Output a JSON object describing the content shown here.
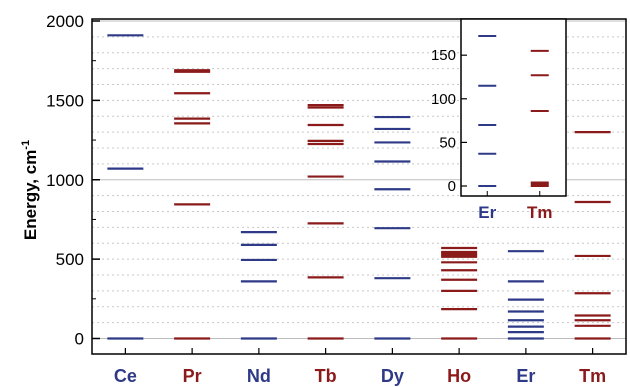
{
  "chart_data": [
    {
      "type": "line",
      "title": "",
      "ylabel": "Energy, cm",
      "ylabel_sup": "-1",
      "ylim": [
        -100,
        2050
      ],
      "yticks": [
        "0",
        "500",
        "1000",
        "1500",
        "2000"
      ],
      "ytick_values": [
        0,
        500,
        1000,
        1500,
        2000
      ],
      "grid": "dotted horizontal lines every 100 cm-1, solid at 0/1000/2000",
      "colors": {
        "blue": "#2e3a87",
        "red": "#8b1a1a"
      },
      "categories": [
        {
          "label": "Ce",
          "color": "blue",
          "levels": [
            0,
            1070,
            1910
          ]
        },
        {
          "label": "Pr",
          "color": "red",
          "levels": [
            0,
            845,
            1355,
            1385,
            1545,
            1680,
            1690
          ]
        },
        {
          "label": "Nd",
          "color": "blue",
          "levels": [
            0,
            360,
            495,
            590,
            670
          ]
        },
        {
          "label": "Tb",
          "color": "red",
          "levels": [
            0,
            385,
            725,
            1020,
            1225,
            1245,
            1345,
            1455,
            1470
          ]
        },
        {
          "label": "Dy",
          "color": "blue",
          "levels": [
            0,
            380,
            695,
            940,
            1115,
            1235,
            1320,
            1395
          ]
        },
        {
          "label": "Ho",
          "color": "red",
          "levels": [
            0,
            185,
            300,
            370,
            430,
            480,
            515,
            525,
            535,
            545,
            570
          ]
        },
        {
          "label": "Er",
          "color": "blue",
          "levels": [
            0,
            40,
            75,
            115,
            170,
            245,
            360,
            550
          ]
        },
        {
          "label": "Tm",
          "color": "red",
          "levels": [
            0,
            80,
            115,
            145,
            285,
            520,
            860,
            1300
          ]
        }
      ]
    },
    {
      "type": "line",
      "title": "inset",
      "ylim": [
        -8,
        182
      ],
      "yticks": [
        "0",
        "50",
        "100",
        "150"
      ],
      "ytick_values": [
        0,
        50,
        100,
        150
      ],
      "categories": [
        {
          "label": "Er",
          "color": "blue",
          "levels": [
            0,
            37,
            70,
            115,
            172
          ]
        },
        {
          "label": "Tm",
          "color": "red",
          "levels": [
            0,
            2,
            4,
            86,
            127,
            155
          ]
        }
      ]
    }
  ]
}
